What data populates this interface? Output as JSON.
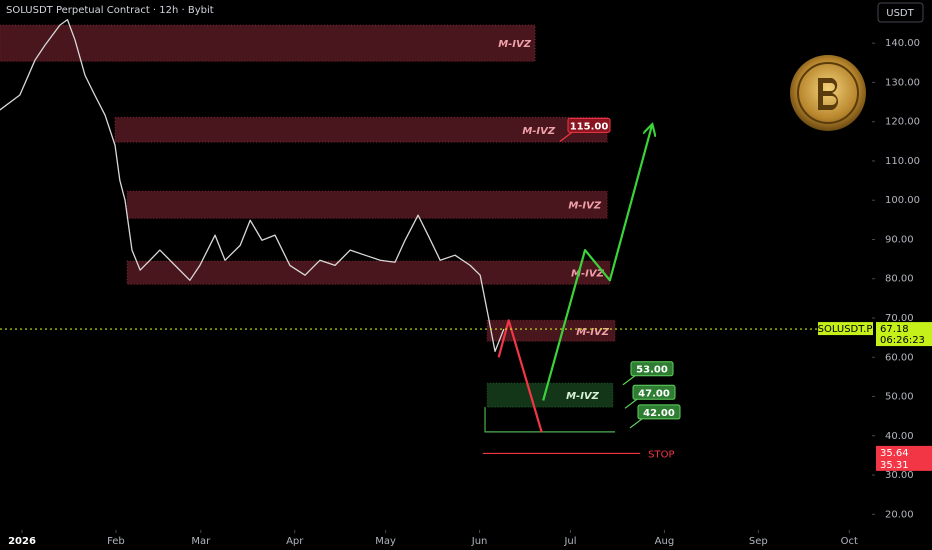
{
  "chart_data": {
    "type": "line",
    "title": "SOLUSDT Perpetual Contract · 12h · Bybit",
    "currency": "USDT",
    "xlim": [
      -7.26,
      280.5
    ],
    "ylim": [
      16,
      151
    ],
    "xticks": [
      {
        "value": 0,
        "label": "2026"
      },
      {
        "value": 31,
        "label": "Feb"
      },
      {
        "value": 59,
        "label": "Mar"
      },
      {
        "value": 90,
        "label": "Apr"
      },
      {
        "value": 120,
        "label": "May"
      },
      {
        "value": 151,
        "label": "Jun"
      },
      {
        "value": 181,
        "label": "Jul"
      },
      {
        "value": 212,
        "label": "Aug"
      },
      {
        "value": 243,
        "label": "Sep"
      },
      {
        "value": 273,
        "label": "Oct"
      }
    ],
    "yticks": [
      {
        "value": 20,
        "label": "20.00"
      },
      {
        "value": 30,
        "label": "30.00"
      },
      {
        "value": 40,
        "label": "40.00"
      },
      {
        "value": 50,
        "label": "50.00"
      },
      {
        "value": 60,
        "label": "60.00"
      },
      {
        "value": 70,
        "label": "70.00"
      },
      {
        "value": 80,
        "label": "80.00"
      },
      {
        "value": 90,
        "label": "90.00"
      },
      {
        "value": 100,
        "label": "100.00"
      },
      {
        "value": 110,
        "label": "110.00"
      },
      {
        "value": 120,
        "label": "120.00"
      },
      {
        "value": 130,
        "label": "130.00"
      },
      {
        "value": 140,
        "label": "140.00"
      }
    ],
    "grid": false,
    "series": [
      {
        "color": "#d8d8d8",
        "x": [
          -7.3,
          -0.7,
          4.3,
          7.6,
          12.5,
          15,
          17.5,
          20.8,
          24,
          27.4,
          30.7,
          32.3,
          34,
          36.3,
          39,
          42.2,
          45.5,
          50.5,
          55.4,
          58.7,
          63.7,
          67,
          72,
          75.3,
          79.2,
          83.5,
          88.4,
          93.4,
          98.3,
          103.3,
          108.3,
          113.2,
          118.2,
          123.1,
          126.4,
          130.7,
          134,
          138,
          142.9,
          147.9,
          151.2,
          153.8,
          156.1,
          159
        ],
        "values": [
          123,
          126.8,
          135.7,
          139.5,
          144.6,
          146,
          140.8,
          131.8,
          126.8,
          121.7,
          114,
          105,
          100,
          87.3,
          82.2,
          84.7,
          87.3,
          83.4,
          79.6,
          83.4,
          91.1,
          84.7,
          88.5,
          94.9,
          89.8,
          91.1,
          83.4,
          80.9,
          84.7,
          83.4,
          87.3,
          86,
          84.7,
          84.2,
          89.8,
          96.2,
          91.1,
          84.7,
          86,
          83.4,
          80.9,
          70.7,
          61.5,
          67.18
        ]
      }
    ],
    "zones": [
      {
        "label": "M-IVZ",
        "color": "#7a2530",
        "text_color": "#f0a0a8",
        "xlim": [
          -7.3,
          169.3
        ],
        "ylim": [
          135.4,
          144.6
        ]
      },
      {
        "label": "M-IVZ",
        "color": "#7a2530",
        "text_color": "#f0a0a8",
        "xlim": [
          30.7,
          193.1
        ],
        "ylim": [
          114.8,
          121.1
        ]
      },
      {
        "label": "M-IVZ",
        "color": "#7a2530",
        "text_color": "#f0a0a8",
        "xlim": [
          34.7,
          193.1
        ],
        "ylim": [
          95.4,
          102.3
        ]
      },
      {
        "label": "M-IVZ",
        "color": "#7a2530",
        "text_color": "#f0a0a8",
        "xlim": [
          34.7,
          194
        ],
        "ylim": [
          78.6,
          84.5
        ]
      },
      {
        "label": "M-IVZ",
        "color": "#7a2530",
        "text_color": "#f0a0a8",
        "xlim": [
          153.5,
          195.7
        ],
        "ylim": [
          64.1,
          69.4
        ]
      },
      {
        "label": "M-IVZ",
        "color": "#1f5a28",
        "text_color": "#d8f0d8",
        "xlim": [
          153.5,
          195
        ],
        "ylim": [
          47.3,
          53.4
        ]
      }
    ],
    "support_box": {
      "color": "#4caf50",
      "xlim": [
        152.8,
        195.7
      ],
      "ylim": [
        41,
        47.3
      ]
    },
    "projections": [
      {
        "color": "#f23645",
        "x": [
          157.3,
          160.6,
          171.5
        ],
        "values": [
          60,
          69.4,
          40.9
        ]
      },
      {
        "color": "#3bd33b",
        "x": [
          172,
          185.8,
          194,
          207.9
        ],
        "values": [
          49,
          87.3,
          79.6,
          119.1
        ]
      }
    ],
    "callouts": [
      {
        "value": 115,
        "label": "115.00",
        "color": "#8a1420",
        "border": "#f23645"
      },
      {
        "value": 53,
        "label": "53.00",
        "color": "#2e7d32",
        "border": "#5fd35f"
      },
      {
        "value": 47,
        "label": "47.00",
        "color": "#2e7d32",
        "border": "#5fd35f"
      },
      {
        "value": 42,
        "label": "42.00",
        "color": "#2e7d32",
        "border": "#5fd35f"
      }
    ],
    "stop": {
      "label": "STOP",
      "value": 35.5,
      "xlim": [
        152.1,
        204
      ],
      "color": "#f23645"
    },
    "last_price": {
      "symbol": "SOLUSDT.P",
      "value": 67.18,
      "countdown": "06:26:23",
      "color": "#c6f01a"
    },
    "stop_prices": {
      "values": [
        35.64,
        35.31
      ],
      "color": "#f23645"
    }
  }
}
